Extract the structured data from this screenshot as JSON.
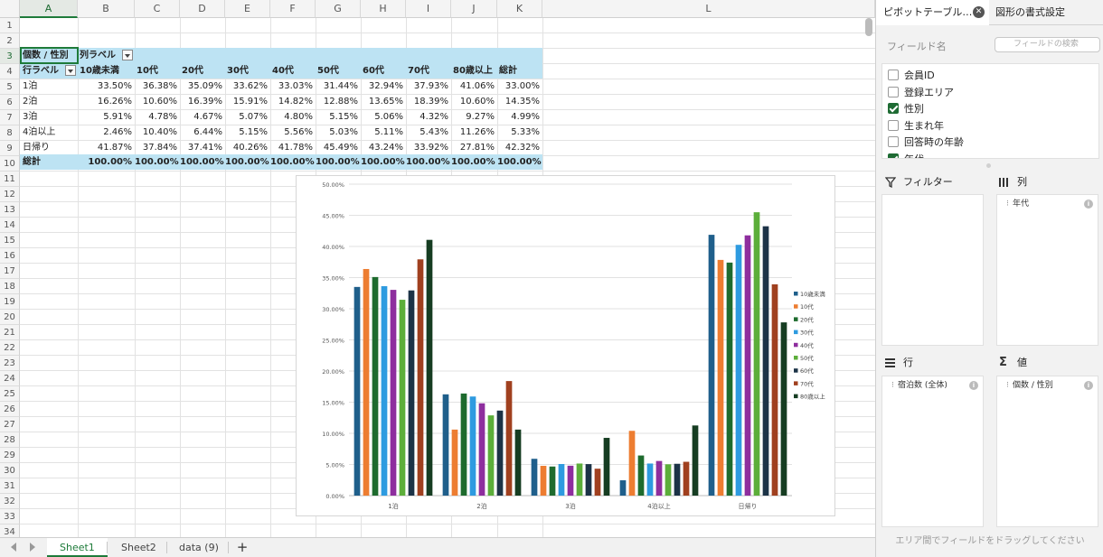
{
  "sheet": {
    "columns": [
      "A",
      "B",
      "C",
      "D",
      "E",
      "F",
      "G",
      "H",
      "I",
      "J",
      "K",
      "L"
    ],
    "rows": [
      "1",
      "2",
      "3",
      "4",
      "5",
      "6",
      "7",
      "8",
      "9",
      "10",
      "11",
      "12",
      "13",
      "14",
      "15",
      "16",
      "17",
      "18",
      "19",
      "20",
      "21",
      "22",
      "23",
      "24",
      "25",
      "26",
      "27",
      "28",
      "29",
      "30",
      "31",
      "32",
      "33",
      "34"
    ],
    "pivot": {
      "corner_label": "個数 / 性別",
      "col_label": "列ラベル",
      "row_label": "行ラベル",
      "headers": [
        "10歳未満",
        "10代",
        "20代",
        "30代",
        "40代",
        "50代",
        "60代",
        "70代",
        "80歳以上",
        "総計"
      ],
      "rows": [
        {
          "label": "1泊",
          "values": [
            "33.50%",
            "36.38%",
            "35.09%",
            "33.62%",
            "33.03%",
            "31.44%",
            "32.94%",
            "37.93%",
            "41.06%",
            "33.00%"
          ]
        },
        {
          "label": "2泊",
          "values": [
            "16.26%",
            "10.60%",
            "16.39%",
            "15.91%",
            "14.82%",
            "12.88%",
            "13.65%",
            "18.39%",
            "10.60%",
            "14.35%"
          ]
        },
        {
          "label": "3泊",
          "values": [
            "5.91%",
            "4.78%",
            "4.67%",
            "5.07%",
            "4.80%",
            "5.15%",
            "5.06%",
            "4.32%",
            "9.27%",
            "4.99%"
          ]
        },
        {
          "label": "4泊以上",
          "values": [
            "2.46%",
            "10.40%",
            "6.44%",
            "5.15%",
            "5.56%",
            "5.03%",
            "5.11%",
            "5.43%",
            "11.26%",
            "5.33%"
          ]
        },
        {
          "label": "日帰り",
          "values": [
            "41.87%",
            "37.84%",
            "37.41%",
            "40.26%",
            "41.78%",
            "45.49%",
            "43.24%",
            "33.92%",
            "27.81%",
            "42.32%"
          ]
        }
      ],
      "total_label": "総計",
      "total_values": [
        "100.00%",
        "100.00%",
        "100.00%",
        "100.00%",
        "100.00%",
        "100.00%",
        "100.00%",
        "100.00%",
        "100.00%",
        "100.00%"
      ]
    }
  },
  "chart_data": {
    "type": "bar",
    "categories": [
      "1泊",
      "2泊",
      "3泊",
      "4泊以上",
      "日帰り"
    ],
    "ylim": [
      0,
      50
    ],
    "yticks": [
      "0.00%",
      "5.00%",
      "10.00%",
      "15.00%",
      "20.00%",
      "25.00%",
      "30.00%",
      "35.00%",
      "40.00%",
      "45.00%",
      "50.00%"
    ],
    "legend_position": "right",
    "grid": true,
    "series": [
      {
        "name": "10歳未満",
        "color": "#1f5f8b",
        "values": [
          33.5,
          16.26,
          5.91,
          2.46,
          41.87
        ]
      },
      {
        "name": "10代",
        "color": "#ed7d31",
        "values": [
          36.38,
          10.6,
          4.78,
          10.4,
          37.84
        ]
      },
      {
        "name": "20代",
        "color": "#1e6b2e",
        "values": [
          35.09,
          16.39,
          4.67,
          6.44,
          37.41
        ]
      },
      {
        "name": "30代",
        "color": "#2e9be0",
        "values": [
          33.62,
          15.91,
          5.07,
          5.15,
          40.26
        ]
      },
      {
        "name": "40代",
        "color": "#8e2e9e",
        "values": [
          33.03,
          14.82,
          4.8,
          5.56,
          41.78
        ]
      },
      {
        "name": "50代",
        "color": "#5cae3a",
        "values": [
          31.44,
          12.88,
          5.15,
          5.03,
          45.49
        ]
      },
      {
        "name": "60代",
        "color": "#1c3347",
        "values": [
          32.94,
          13.65,
          5.06,
          5.11,
          43.24
        ]
      },
      {
        "name": "70代",
        "color": "#a0401f",
        "values": [
          37.93,
          18.39,
          4.32,
          5.43,
          33.92
        ]
      },
      {
        "name": "80歳以上",
        "color": "#163d22",
        "values": [
          41.06,
          10.6,
          9.27,
          11.26,
          27.81
        ]
      }
    ]
  },
  "tabs": [
    {
      "label": "Sheet1",
      "active": true
    },
    {
      "label": "Sheet2",
      "active": false
    },
    {
      "label": "data (9)",
      "active": false
    }
  ],
  "add_tab": "+",
  "pane": {
    "tab_pivot": "ピボットテーブル…",
    "tab_format": "図形の書式設定",
    "close_glyph": "✕",
    "fields_label": "フィールド名",
    "search_placeholder": "フィールドの検索",
    "fields": [
      {
        "label": "会員ID",
        "checked": false
      },
      {
        "label": "登録エリア",
        "checked": false
      },
      {
        "label": "性別",
        "checked": true
      },
      {
        "label": "生まれ年",
        "checked": false
      },
      {
        "label": "回答時の年齢",
        "checked": false
      },
      {
        "label": "年代",
        "checked": true
      }
    ],
    "filter_label": "フィルター",
    "columns_label": "列",
    "columns_item": "年代",
    "rows_label": "行",
    "rows_item": "宿泊数 (全体)",
    "values_label": "値",
    "values_item": "個数 / 性別",
    "info_glyph": "i",
    "footer": "エリア間でフィールドをドラッグしてください"
  }
}
